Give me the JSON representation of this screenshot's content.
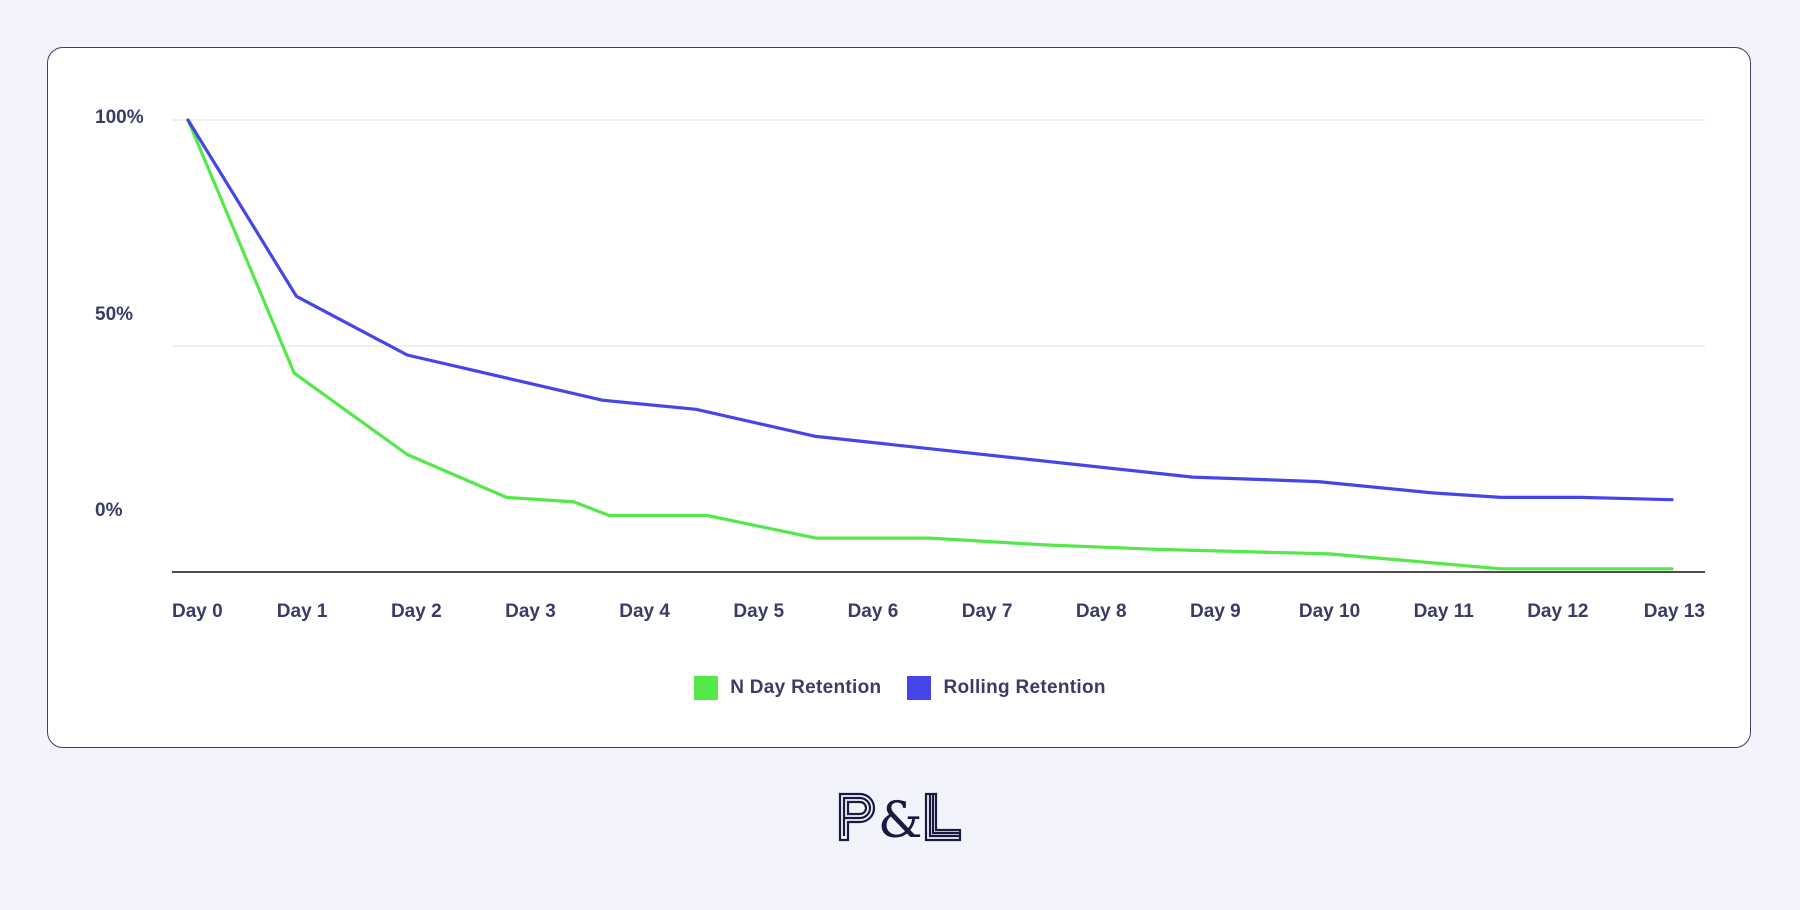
{
  "chart_data": {
    "type": "line",
    "categories": [
      "Day 0",
      "Day 1",
      "Day 2",
      "Day 3",
      "Day 4",
      "Day 5",
      "Day 6",
      "Day 7",
      "Day 8",
      "Day 9",
      "Day 10",
      "Day 11",
      "Day 12",
      "Day 13"
    ],
    "y_tick_labels": [
      "100%",
      "50%",
      "0%"
    ],
    "grid": true,
    "legend_position": "bottom-center",
    "series": [
      {
        "name": "N Day Retention",
        "color": "#55e84a",
        "points": [
          {
            "x": 0.0,
            "y": 100
          },
          {
            "x": 0.93,
            "y": 44
          },
          {
            "x": 1.92,
            "y": 26
          },
          {
            "x": 2.79,
            "y": 16.5
          },
          {
            "x": 3.38,
            "y": 15.5
          },
          {
            "x": 3.69,
            "y": 12.5
          },
          {
            "x": 4.55,
            "y": 12.5
          },
          {
            "x": 5.5,
            "y": 7.5
          },
          {
            "x": 6.5,
            "y": 7.5
          },
          {
            "x": 7.5,
            "y": 6
          },
          {
            "x": 8.5,
            "y": 5
          },
          {
            "x": 10.0,
            "y": 4
          },
          {
            "x": 11.5,
            "y": 0.7
          },
          {
            "x": 13.0,
            "y": 0.7
          }
        ]
      },
      {
        "name": "Rolling Retention",
        "color": "#4646e8",
        "points": [
          {
            "x": 0.0,
            "y": 100
          },
          {
            "x": 0.95,
            "y": 61
          },
          {
            "x": 1.92,
            "y": 48
          },
          {
            "x": 3.63,
            "y": 38
          },
          {
            "x": 4.45,
            "y": 36
          },
          {
            "x": 5.5,
            "y": 30
          },
          {
            "x": 8.8,
            "y": 21
          },
          {
            "x": 9.9,
            "y": 20
          },
          {
            "x": 10.9,
            "y": 17.5
          },
          {
            "x": 11.5,
            "y": 16.5
          },
          {
            "x": 12.2,
            "y": 16.5
          },
          {
            "x": 13.0,
            "y": 16
          }
        ]
      }
    ]
  },
  "logo_text": "P&L",
  "colors": {
    "background": "#f3f4fb",
    "card_border": "#3d3f6a",
    "text": "#3a3c66",
    "axis": "#111111",
    "grid": "#e4e5ee"
  }
}
